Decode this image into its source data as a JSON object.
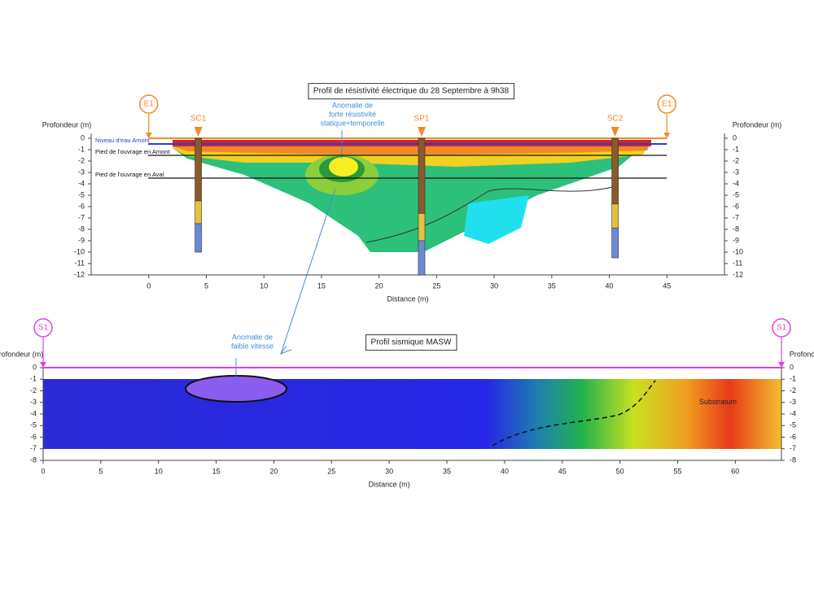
{
  "chart_data": [
    {
      "type": "section",
      "title": "Profil de résistivité électrique du 28 Septembre à 9h38",
      "x_label": "Distance (m)",
      "y_label": "Profondeur (m)",
      "xlim": [
        -5,
        50
      ],
      "xticks": [
        0,
        5,
        10,
        15,
        20,
        25,
        30,
        35,
        40,
        45
      ],
      "ylim": [
        -12,
        0
      ],
      "yticks": [
        0,
        -1,
        -2,
        -3,
        -4,
        -5,
        -6,
        -7,
        -8,
        -9,
        -10,
        -11,
        -12
      ],
      "boreholes": [
        {
          "label": "SC1",
          "x": 4.3,
          "depth": -10
        },
        {
          "label": "SP1",
          "x": 23.7,
          "depth": -12
        },
        {
          "label": "SC2",
          "x": 40.5,
          "depth": -10.5
        }
      ],
      "levels": [
        {
          "label": "Niveau d'eau Amont",
          "depth": -0.5,
          "color": "#2b3fd0"
        },
        {
          "label": "Pied de l'ouvrage en Amont",
          "depth": -1.5,
          "color": "#111111"
        },
        {
          "label": "Pied de l'ouvrage en Aval",
          "depth": -3.5,
          "color": "#111111"
        }
      ],
      "markers": [
        {
          "label": "E1",
          "x": 0
        },
        {
          "label": "E1",
          "x": 45
        }
      ],
      "marker_color": "#f08a24",
      "annotation": [
        "Anomalie de",
        "forte résistivité",
        "statique+temporelle"
      ]
    },
    {
      "type": "section",
      "title": "Profil sismique MASW",
      "x_label": "Distance (m)",
      "y_label": "Profondeur (m)",
      "xlim": [
        0,
        64
      ],
      "xticks": [
        0,
        5,
        10,
        15,
        20,
        25,
        30,
        35,
        40,
        45,
        50,
        55,
        60
      ],
      "ylim": [
        -8,
        0
      ],
      "yticks": [
        0,
        -1,
        -2,
        -3,
        -4,
        -5,
        -6,
        -7,
        -8
      ],
      "markers": [
        {
          "label": "S1",
          "x": 0
        },
        {
          "label": "S1",
          "x": 64
        }
      ],
      "marker_color": "#e040e0",
      "annotation": [
        "Anomalie de",
        "faible vitesse"
      ],
      "substratum": "Substratum"
    }
  ]
}
